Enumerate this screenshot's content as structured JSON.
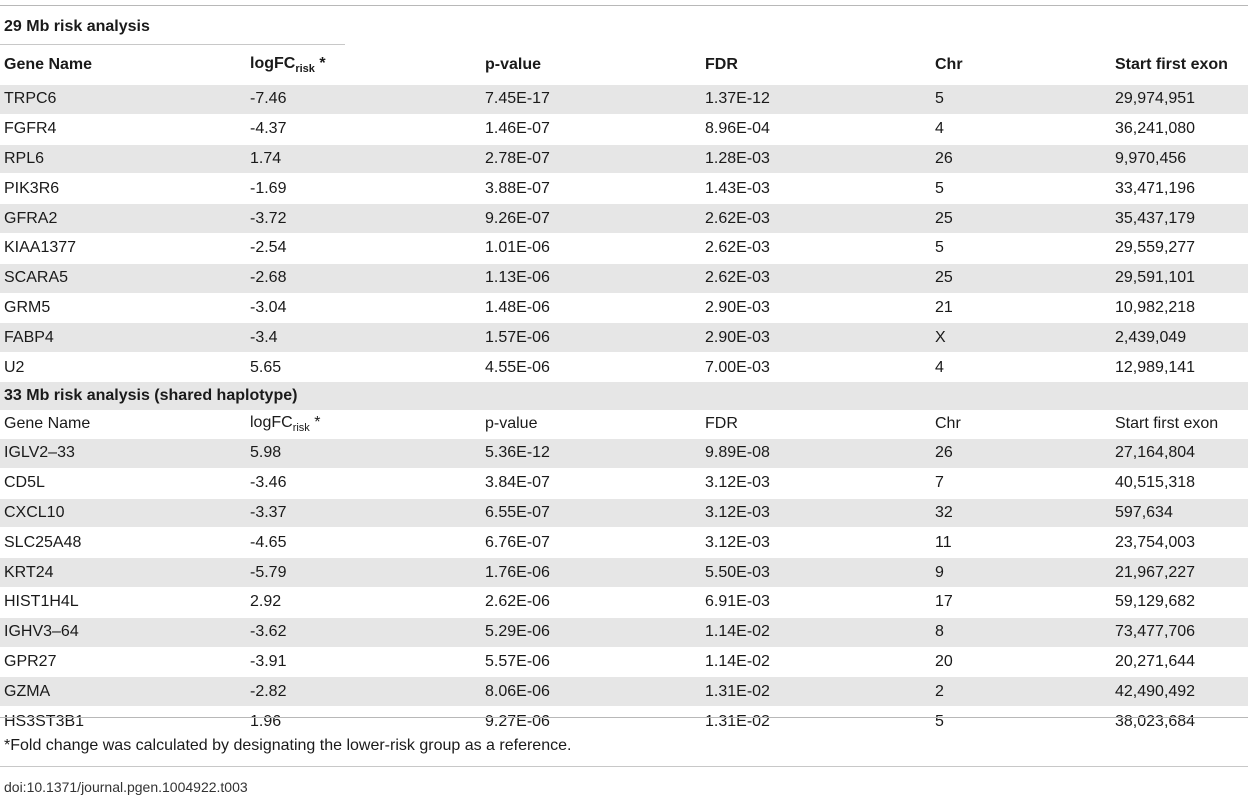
{
  "section1": {
    "title": "29 Mb risk analysis",
    "headers": {
      "gene": "Gene Name",
      "logfc_main": "logFC",
      "logfc_sub": "risk",
      "logfc_mark": " *",
      "pvalue": "p-value",
      "fdr": "FDR",
      "chr": "Chr",
      "start": "Start first exon"
    },
    "rows": [
      {
        "gene": "TRPC6",
        "logfc": "-7.46",
        "pvalue": "7.45E-17",
        "fdr": "1.37E-12",
        "chr": "5",
        "start": "29,974,951"
      },
      {
        "gene": "FGFR4",
        "logfc": "-4.37",
        "pvalue": "1.46E-07",
        "fdr": "8.96E-04",
        "chr": "4",
        "start": "36,241,080"
      },
      {
        "gene": "RPL6",
        "logfc": "1.74",
        "pvalue": "2.78E-07",
        "fdr": "1.28E-03",
        "chr": "26",
        "start": "9,970,456"
      },
      {
        "gene": "PIK3R6",
        "logfc": "-1.69",
        "pvalue": "3.88E-07",
        "fdr": "1.43E-03",
        "chr": "5",
        "start": "33,471,196"
      },
      {
        "gene": "GFRA2",
        "logfc": "-3.72",
        "pvalue": "9.26E-07",
        "fdr": "2.62E-03",
        "chr": "25",
        "start": "35,437,179"
      },
      {
        "gene": "KIAA1377",
        "logfc": "-2.54",
        "pvalue": "1.01E-06",
        "fdr": "2.62E-03",
        "chr": "5",
        "start": "29,559,277"
      },
      {
        "gene": "SCARA5",
        "logfc": "-2.68",
        "pvalue": "1.13E-06",
        "fdr": "2.62E-03",
        "chr": "25",
        "start": "29,591,101"
      },
      {
        "gene": "GRM5",
        "logfc": "-3.04",
        "pvalue": "1.48E-06",
        "fdr": "2.90E-03",
        "chr": "21",
        "start": "10,982,218"
      },
      {
        "gene": "FABP4",
        "logfc": "-3.4",
        "pvalue": "1.57E-06",
        "fdr": "2.90E-03",
        "chr": "X",
        "start": "2,439,049"
      },
      {
        "gene": "U2",
        "logfc": "5.65",
        "pvalue": "4.55E-06",
        "fdr": "7.00E-03",
        "chr": "4",
        "start": "12,989,141"
      }
    ]
  },
  "section2": {
    "title": "33 Mb risk analysis (shared haplotype)",
    "headers": {
      "gene": "Gene Name",
      "logfc_main": "logFC",
      "logfc_sub": "risk",
      "logfc_mark": " *",
      "pvalue": "p-value",
      "fdr": "FDR",
      "chr": "Chr",
      "start": "Start first exon"
    },
    "rows": [
      {
        "gene": "IGLV2–33",
        "logfc": "5.98",
        "pvalue": "5.36E-12",
        "fdr": "9.89E-08",
        "chr": "26",
        "start": "27,164,804"
      },
      {
        "gene": "CD5L",
        "logfc": "-3.46",
        "pvalue": "3.84E-07",
        "fdr": "3.12E-03",
        "chr": "7",
        "start": "40,515,318"
      },
      {
        "gene": "CXCL10",
        "logfc": "-3.37",
        "pvalue": "6.55E-07",
        "fdr": "3.12E-03",
        "chr": "32",
        "start": "597,634"
      },
      {
        "gene": "SLC25A48",
        "logfc": "-4.65",
        "pvalue": "6.76E-07",
        "fdr": "3.12E-03",
        "chr": "11",
        "start": "23,754,003"
      },
      {
        "gene": "KRT24",
        "logfc": "-5.79",
        "pvalue": "1.76E-06",
        "fdr": "5.50E-03",
        "chr": "9",
        "start": "21,967,227"
      },
      {
        "gene": "HIST1H4L",
        "logfc": "2.92",
        "pvalue": "2.62E-06",
        "fdr": "6.91E-03",
        "chr": "17",
        "start": "59,129,682"
      },
      {
        "gene": "IGHV3–64",
        "logfc": "-3.62",
        "pvalue": "5.29E-06",
        "fdr": "1.14E-02",
        "chr": "8",
        "start": "73,477,706"
      },
      {
        "gene": "GPR27",
        "logfc": "-3.91",
        "pvalue": "5.57E-06",
        "fdr": "1.14E-02",
        "chr": "20",
        "start": "20,271,644"
      },
      {
        "gene": "GZMA",
        "logfc": "-2.82",
        "pvalue": "8.06E-06",
        "fdr": "1.31E-02",
        "chr": "2",
        "start": "42,490,492"
      },
      {
        "gene": "HS3ST3B1",
        "logfc": "1.96",
        "pvalue": "9.27E-06",
        "fdr": "1.31E-02",
        "chr": "5",
        "start": "38,023,684"
      }
    ]
  },
  "footnote": "*Fold change was calculated by designating the lower-risk group as a reference.",
  "doi": "doi:10.1371/journal.pgen.1004922.t003"
}
